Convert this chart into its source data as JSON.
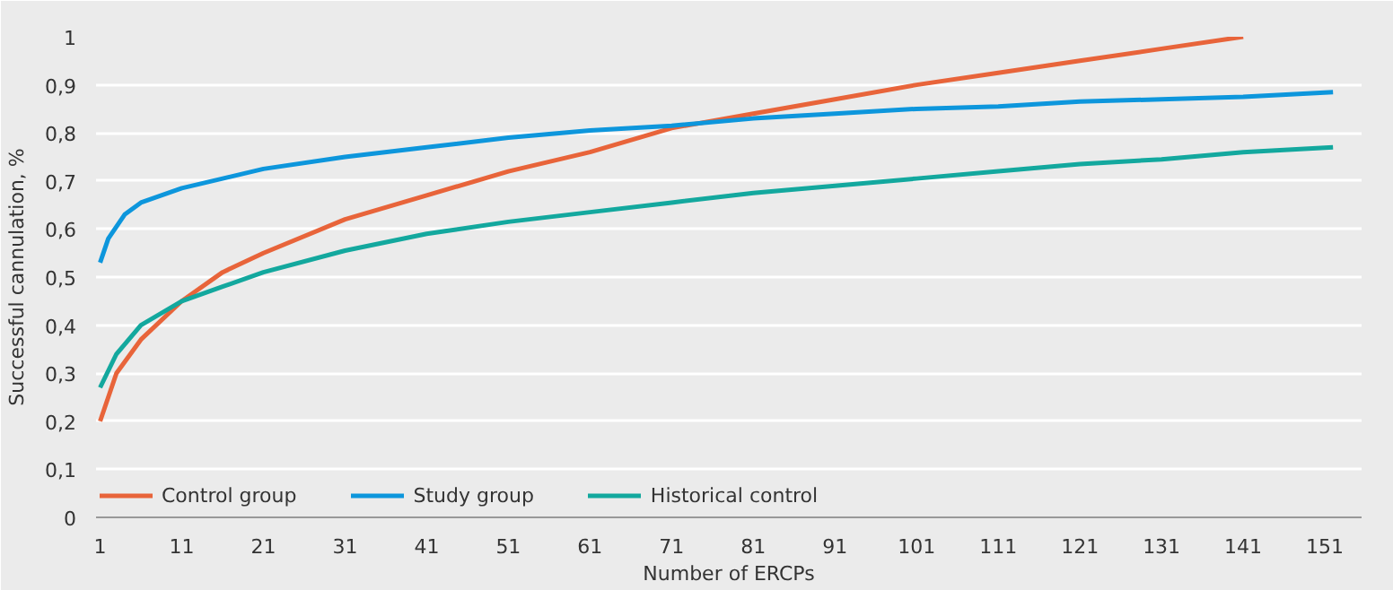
{
  "chart_data": {
    "type": "line",
    "xlabel": "Number of ERCPs",
    "ylabel": "Successful cannulation, %",
    "xlim": [
      0.5,
      155.5
    ],
    "ylim": [
      0,
      1
    ],
    "xticks": [
      1,
      11,
      21,
      31,
      41,
      51,
      61,
      71,
      81,
      91,
      101,
      111,
      121,
      131,
      141,
      151
    ],
    "yticks": [
      0,
      {
        "value": 0.1,
        "label": "0,1"
      },
      {
        "value": 0.2,
        "label": "0,2"
      },
      {
        "value": 0.3,
        "label": "0,3"
      },
      {
        "value": 0.4,
        "label": "0,4"
      },
      {
        "value": 0.5,
        "label": "0,5"
      },
      {
        "value": 0.6,
        "label": "0,6"
      },
      {
        "value": 0.7,
        "label": "0,7"
      },
      {
        "value": 0.8,
        "label": "0,8"
      },
      {
        "value": 0.9,
        "label": "0,9"
      },
      1
    ],
    "grid": "y",
    "legend": "bottom left",
    "line_style": "solid",
    "marker": "none",
    "series": [
      {
        "name": "Control group",
        "color": "#e8643a",
        "x": [
          1,
          3,
          6,
          11,
          16,
          21,
          31,
          41,
          51,
          61,
          71,
          81,
          91,
          101,
          111,
          121,
          131,
          141
        ],
        "values": [
          0.2,
          0.3,
          0.37,
          0.45,
          0.51,
          0.55,
          0.62,
          0.67,
          0.72,
          0.76,
          0.81,
          0.84,
          0.87,
          0.9,
          0.925,
          0.95,
          0.975,
          1.0
        ]
      },
      {
        "name": "Study group",
        "color": "#0d96dc",
        "x": [
          1,
          2,
          4,
          6,
          11,
          21,
          31,
          41,
          51,
          61,
          71,
          81,
          91,
          101,
          111,
          121,
          131,
          141,
          152
        ],
        "values": [
          0.53,
          0.58,
          0.63,
          0.655,
          0.685,
          0.725,
          0.75,
          0.77,
          0.79,
          0.805,
          0.815,
          0.83,
          0.84,
          0.85,
          0.855,
          0.865,
          0.87,
          0.875,
          0.885
        ]
      },
      {
        "name": "Historical control",
        "color": "#13a89e",
        "x": [
          1,
          3,
          6,
          11,
          16,
          21,
          31,
          41,
          51,
          61,
          71,
          81,
          91,
          101,
          111,
          121,
          131,
          141,
          152
        ],
        "values": [
          0.27,
          0.34,
          0.4,
          0.45,
          0.48,
          0.51,
          0.555,
          0.59,
          0.615,
          0.635,
          0.655,
          0.675,
          0.69,
          0.705,
          0.72,
          0.735,
          0.745,
          0.76,
          0.77
        ]
      }
    ]
  }
}
